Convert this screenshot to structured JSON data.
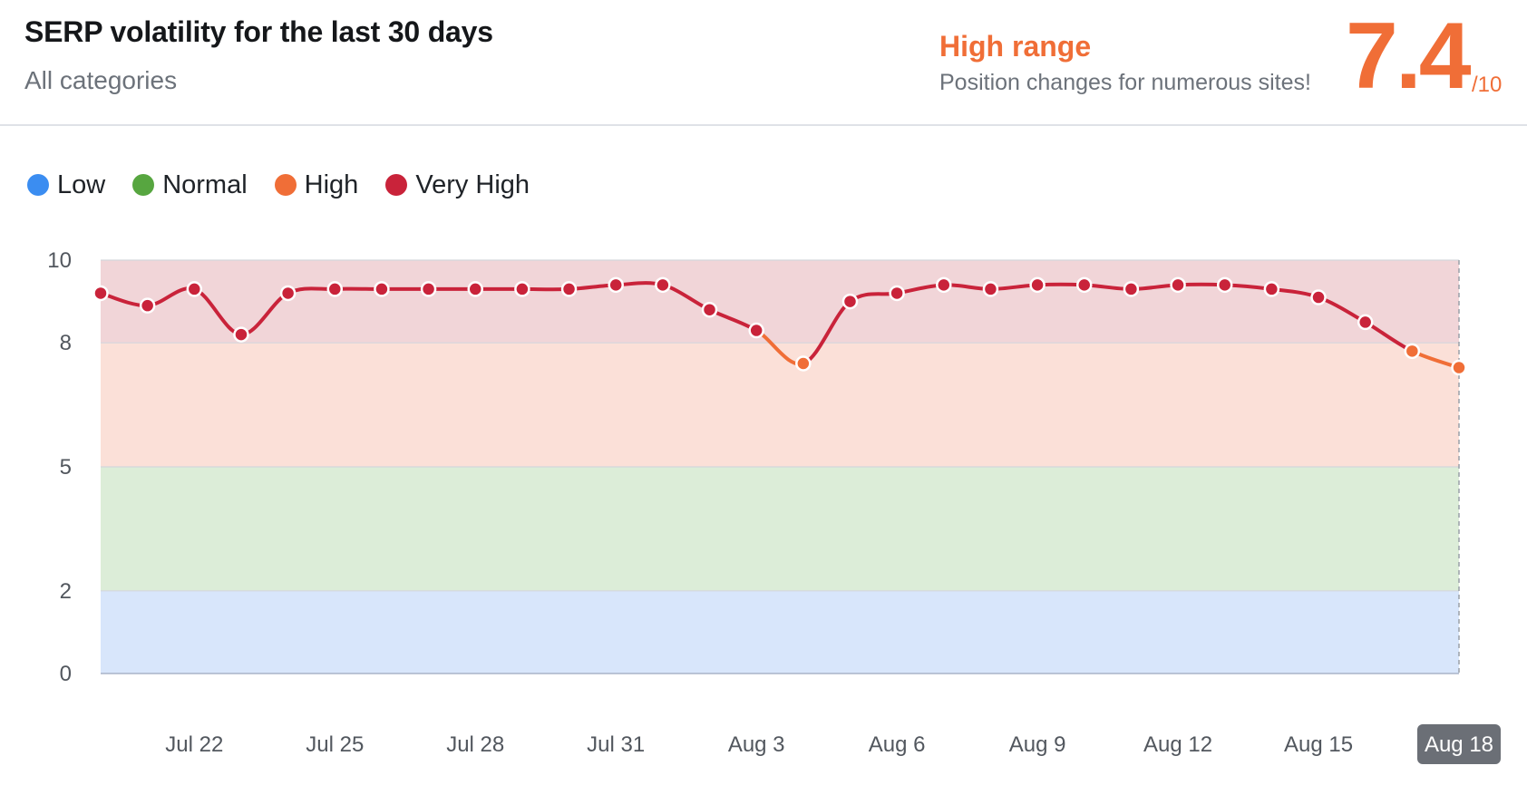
{
  "header": {
    "title": "SERP volatility for the last 30 days",
    "subtitle": "All categories",
    "range_label": "High range",
    "range_description": "Position changes for numerous sites!",
    "score": "7.4",
    "score_max": "/10"
  },
  "colors": {
    "accent": "#f06e37",
    "low": "#3b8df1",
    "normal": "#57a640",
    "high": "#f06e37",
    "very_high": "#c9233a",
    "band_low": "#d8e6fb",
    "band_normal": "#dcedd8",
    "band_high": "#fbe0d8",
    "band_very_high": "#f1d5d8"
  },
  "legend": [
    {
      "label": "Low",
      "color": "#3b8df1"
    },
    {
      "label": "Normal",
      "color": "#57a640"
    },
    {
      "label": "High",
      "color": "#f06e37"
    },
    {
      "label": "Very High",
      "color": "#c9233a"
    }
  ],
  "chart_data": {
    "type": "area",
    "title": "SERP volatility for the last 30 days",
    "xlabel": "",
    "ylabel": "",
    "ylim": [
      0,
      10
    ],
    "yticks": [
      0,
      2,
      5,
      8,
      10
    ],
    "bands": [
      {
        "name": "Low",
        "from": 0,
        "to": 2,
        "color": "#d8e6fb"
      },
      {
        "name": "Normal",
        "from": 2,
        "to": 5,
        "color": "#dcedd8"
      },
      {
        "name": "High",
        "from": 5,
        "to": 8,
        "color": "#fbe0d8"
      },
      {
        "name": "Very High",
        "from": 8,
        "to": 10,
        "color": "#f1d5d8"
      }
    ],
    "x": [
      "Jul 20",
      "Jul 21",
      "Jul 22",
      "Jul 23",
      "Jul 24",
      "Jul 25",
      "Jul 26",
      "Jul 27",
      "Jul 28",
      "Jul 29",
      "Jul 30",
      "Jul 31",
      "Aug 1",
      "Aug 2",
      "Aug 3",
      "Aug 4",
      "Aug 5",
      "Aug 6",
      "Aug 7",
      "Aug 8",
      "Aug 9",
      "Aug 10",
      "Aug 11",
      "Aug 12",
      "Aug 13",
      "Aug 14",
      "Aug 15",
      "Aug 16",
      "Aug 17",
      "Aug 18"
    ],
    "xticks": [
      "Jul 22",
      "Jul 25",
      "Jul 28",
      "Jul 31",
      "Aug 3",
      "Aug 6",
      "Aug 9",
      "Aug 12",
      "Aug 15",
      "Aug 18"
    ],
    "active_tick": "Aug 18",
    "series": [
      {
        "values": [
          9.2,
          8.9,
          9.3,
          8.2,
          9.2,
          9.3,
          9.3,
          9.3,
          9.3,
          9.3,
          9.3,
          9.4,
          9.4,
          8.8,
          8.3,
          7.5,
          9.0,
          9.2,
          9.4,
          9.3,
          9.4,
          9.4,
          9.3,
          9.4,
          9.4,
          9.3,
          9.1,
          8.5,
          7.8,
          7.4
        ]
      }
    ],
    "grid": true
  }
}
